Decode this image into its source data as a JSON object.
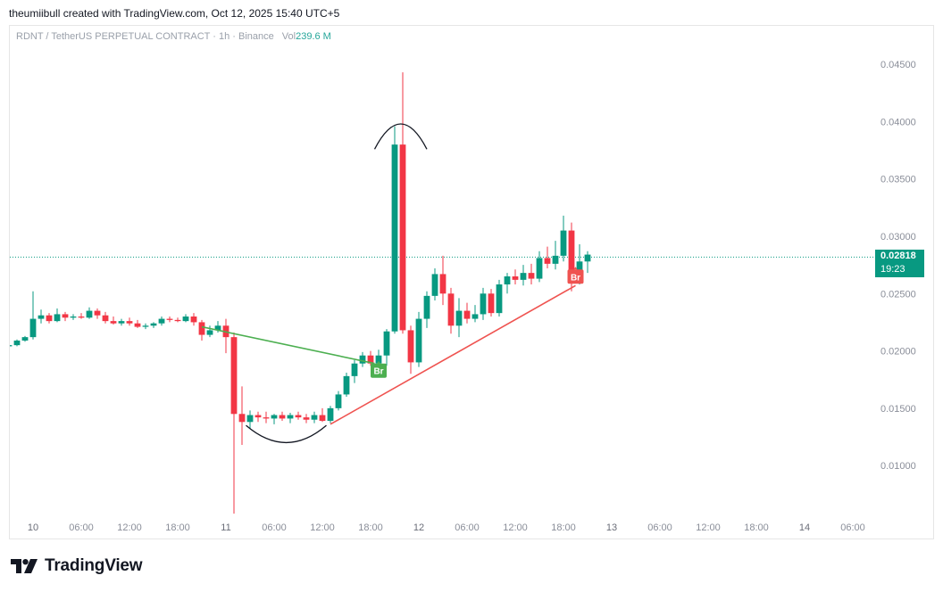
{
  "header": {
    "text": "theumiibull created with TradingView.com, Oct 12, 2025 15:40 UTC+5"
  },
  "legend": {
    "symbol": "RDNT / TetherUS PERPETUAL CONTRACT · 1h · Binance",
    "vol_label": "Vol",
    "vol_value": "239.6 M"
  },
  "price_tag": {
    "price": "0.02818",
    "countdown": "19:23"
  },
  "brand": {
    "name": "TradingView",
    "logo_icon": "tradingview-logo-icon"
  },
  "colors": {
    "up": "#089981",
    "down": "#f23645",
    "green_line": "#4caf50",
    "red_line": "#ef5350",
    "annotation": "#131722"
  },
  "chart_data": {
    "type": "candlestick",
    "interval": "1h",
    "current_price": 0.02818,
    "ylim": [
      0.0055,
      0.0475
    ],
    "y_ticks": [
      0.045,
      0.04,
      0.035,
      0.03,
      0.025,
      0.02,
      0.015,
      0.01
    ],
    "y_tick_labels": [
      "0.04500",
      "0.04000",
      "0.03500",
      "0.03000",
      "0.02500",
      "0.02000",
      "0.01500",
      "0.01000"
    ],
    "x_ticks": [
      {
        "label": "10",
        "x": 0,
        "day": true
      },
      {
        "label": "06:00",
        "x": 6
      },
      {
        "label": "12:00",
        "x": 12
      },
      {
        "label": "18:00",
        "x": 18
      },
      {
        "label": "11",
        "x": 24,
        "day": true
      },
      {
        "label": "06:00",
        "x": 30
      },
      {
        "label": "12:00",
        "x": 36
      },
      {
        "label": "18:00",
        "x": 42
      },
      {
        "label": "12",
        "x": 48,
        "day": true
      },
      {
        "label": "06:00",
        "x": 54
      },
      {
        "label": "12:00",
        "x": 60
      },
      {
        "label": "18:00",
        "x": 66
      },
      {
        "label": "13",
        "x": 72,
        "day": true
      },
      {
        "label": "06:00",
        "x": 78
      },
      {
        "label": "12:00",
        "x": 84
      },
      {
        "label": "18:00",
        "x": 90
      },
      {
        "label": "14",
        "x": 96,
        "day": true
      },
      {
        "label": "06:00",
        "x": 102
      }
    ],
    "candles": [
      {
        "x": -3,
        "o": 0.0204,
        "h": 0.0207,
        "l": 0.0202,
        "c": 0.0205
      },
      {
        "x": -2,
        "o": 0.0205,
        "h": 0.021,
        "l": 0.0204,
        "c": 0.0209
      },
      {
        "x": -1,
        "o": 0.0209,
        "h": 0.0213,
        "l": 0.0208,
        "c": 0.0212
      },
      {
        "x": 0,
        "o": 0.0212,
        "h": 0.0252,
        "l": 0.021,
        "c": 0.0228
      },
      {
        "x": 1,
        "o": 0.0228,
        "h": 0.0236,
        "l": 0.0224,
        "c": 0.0231
      },
      {
        "x": 2,
        "o": 0.0231,
        "h": 0.0233,
        "l": 0.0224,
        "c": 0.0226
      },
      {
        "x": 3,
        "o": 0.0226,
        "h": 0.0237,
        "l": 0.0225,
        "c": 0.0232
      },
      {
        "x": 4,
        "o": 0.0232,
        "h": 0.0234,
        "l": 0.0226,
        "c": 0.0229
      },
      {
        "x": 5,
        "o": 0.0229,
        "h": 0.0232,
        "l": 0.0227,
        "c": 0.023
      },
      {
        "x": 6,
        "o": 0.023,
        "h": 0.0233,
        "l": 0.0228,
        "c": 0.0229
      },
      {
        "x": 7,
        "o": 0.0229,
        "h": 0.0238,
        "l": 0.0228,
        "c": 0.0235
      },
      {
        "x": 8,
        "o": 0.0235,
        "h": 0.0237,
        "l": 0.0228,
        "c": 0.0231
      },
      {
        "x": 9,
        "o": 0.0231,
        "h": 0.0234,
        "l": 0.0224,
        "c": 0.0226
      },
      {
        "x": 10,
        "o": 0.0226,
        "h": 0.023,
        "l": 0.0223,
        "c": 0.0224
      },
      {
        "x": 11,
        "o": 0.0224,
        "h": 0.0228,
        "l": 0.0222,
        "c": 0.0226
      },
      {
        "x": 12,
        "o": 0.0226,
        "h": 0.0229,
        "l": 0.0222,
        "c": 0.0224
      },
      {
        "x": 13,
        "o": 0.0224,
        "h": 0.0227,
        "l": 0.022,
        "c": 0.0221
      },
      {
        "x": 14,
        "o": 0.0221,
        "h": 0.0224,
        "l": 0.0219,
        "c": 0.0222
      },
      {
        "x": 15,
        "o": 0.0222,
        "h": 0.0225,
        "l": 0.022,
        "c": 0.0224
      },
      {
        "x": 16,
        "o": 0.0224,
        "h": 0.023,
        "l": 0.0222,
        "c": 0.0228
      },
      {
        "x": 17,
        "o": 0.0228,
        "h": 0.023,
        "l": 0.0225,
        "c": 0.0227
      },
      {
        "x": 18,
        "o": 0.0227,
        "h": 0.0229,
        "l": 0.0225,
        "c": 0.0226
      },
      {
        "x": 19,
        "o": 0.0226,
        "h": 0.0232,
        "l": 0.0225,
        "c": 0.023
      },
      {
        "x": 20,
        "o": 0.023,
        "h": 0.0233,
        "l": 0.0222,
        "c": 0.0225
      },
      {
        "x": 21,
        "o": 0.0225,
        "h": 0.0227,
        "l": 0.0209,
        "c": 0.0214
      },
      {
        "x": 22,
        "o": 0.0214,
        "h": 0.0222,
        "l": 0.0212,
        "c": 0.0218
      },
      {
        "x": 23,
        "o": 0.0218,
        "h": 0.0226,
        "l": 0.0216,
        "c": 0.0222
      },
      {
        "x": 24,
        "o": 0.0222,
        "h": 0.0228,
        "l": 0.0198,
        "c": 0.0212
      },
      {
        "x": 25,
        "o": 0.0212,
        "h": 0.0216,
        "l": 0.0058,
        "c": 0.0145
      },
      {
        "x": 26,
        "o": 0.0145,
        "h": 0.0169,
        "l": 0.0118,
        "c": 0.0138
      },
      {
        "x": 27,
        "o": 0.0138,
        "h": 0.0148,
        "l": 0.0132,
        "c": 0.0144
      },
      {
        "x": 28,
        "o": 0.0144,
        "h": 0.0147,
        "l": 0.0138,
        "c": 0.0142
      },
      {
        "x": 29,
        "o": 0.0142,
        "h": 0.0147,
        "l": 0.0137,
        "c": 0.0141
      },
      {
        "x": 30,
        "o": 0.0141,
        "h": 0.0145,
        "l": 0.0136,
        "c": 0.0144
      },
      {
        "x": 31,
        "o": 0.0144,
        "h": 0.0147,
        "l": 0.0139,
        "c": 0.0141
      },
      {
        "x": 32,
        "o": 0.0141,
        "h": 0.0146,
        "l": 0.0137,
        "c": 0.0144
      },
      {
        "x": 33,
        "o": 0.0144,
        "h": 0.0147,
        "l": 0.014,
        "c": 0.0142
      },
      {
        "x": 34,
        "o": 0.0142,
        "h": 0.0145,
        "l": 0.0137,
        "c": 0.014
      },
      {
        "x": 35,
        "o": 0.014,
        "h": 0.0147,
        "l": 0.0137,
        "c": 0.0144
      },
      {
        "x": 36,
        "o": 0.0144,
        "h": 0.015,
        "l": 0.0138,
        "c": 0.0139
      },
      {
        "x": 37,
        "o": 0.0139,
        "h": 0.0152,
        "l": 0.0137,
        "c": 0.015
      },
      {
        "x": 38,
        "o": 0.015,
        "h": 0.0165,
        "l": 0.0148,
        "c": 0.0162
      },
      {
        "x": 39,
        "o": 0.0162,
        "h": 0.0181,
        "l": 0.016,
        "c": 0.0178
      },
      {
        "x": 40,
        "o": 0.0178,
        "h": 0.0192,
        "l": 0.0172,
        "c": 0.0189
      },
      {
        "x": 41,
        "o": 0.0189,
        "h": 0.0199,
        "l": 0.0186,
        "c": 0.0196
      },
      {
        "x": 42,
        "o": 0.0196,
        "h": 0.02,
        "l": 0.0187,
        "c": 0.0189
      },
      {
        "x": 43,
        "o": 0.0189,
        "h": 0.0201,
        "l": 0.0185,
        "c": 0.0196
      },
      {
        "x": 44,
        "o": 0.0196,
        "h": 0.0219,
        "l": 0.0187,
        "c": 0.0217
      },
      {
        "x": 45,
        "o": 0.0217,
        "h": 0.0396,
        "l": 0.0215,
        "c": 0.038
      },
      {
        "x": 46,
        "o": 0.038,
        "h": 0.0443,
        "l": 0.0215,
        "c": 0.0218
      },
      {
        "x": 47,
        "o": 0.0218,
        "h": 0.0222,
        "l": 0.018,
        "c": 0.019
      },
      {
        "x": 48,
        "o": 0.019,
        "h": 0.0234,
        "l": 0.0186,
        "c": 0.0228
      },
      {
        "x": 49,
        "o": 0.0228,
        "h": 0.0252,
        "l": 0.022,
        "c": 0.0248
      },
      {
        "x": 50,
        "o": 0.0248,
        "h": 0.0272,
        "l": 0.0244,
        "c": 0.0267
      },
      {
        "x": 51,
        "o": 0.0267,
        "h": 0.0283,
        "l": 0.024,
        "c": 0.025
      },
      {
        "x": 52,
        "o": 0.025,
        "h": 0.0255,
        "l": 0.0215,
        "c": 0.0222
      },
      {
        "x": 53,
        "o": 0.0222,
        "h": 0.0246,
        "l": 0.0212,
        "c": 0.0235
      },
      {
        "x": 54,
        "o": 0.0235,
        "h": 0.0242,
        "l": 0.0224,
        "c": 0.0228
      },
      {
        "x": 55,
        "o": 0.0228,
        "h": 0.024,
        "l": 0.0225,
        "c": 0.0232
      },
      {
        "x": 56,
        "o": 0.0232,
        "h": 0.0255,
        "l": 0.0227,
        "c": 0.025
      },
      {
        "x": 57,
        "o": 0.025,
        "h": 0.0254,
        "l": 0.023,
        "c": 0.0233
      },
      {
        "x": 58,
        "o": 0.0233,
        "h": 0.0262,
        "l": 0.023,
        "c": 0.0258
      },
      {
        "x": 59,
        "o": 0.0258,
        "h": 0.0268,
        "l": 0.025,
        "c": 0.0265
      },
      {
        "x": 60,
        "o": 0.0265,
        "h": 0.0271,
        "l": 0.0258,
        "c": 0.0262
      },
      {
        "x": 61,
        "o": 0.0262,
        "h": 0.0275,
        "l": 0.0257,
        "c": 0.0268
      },
      {
        "x": 62,
        "o": 0.0268,
        "h": 0.0276,
        "l": 0.0258,
        "c": 0.0263
      },
      {
        "x": 63,
        "o": 0.0263,
        "h": 0.0287,
        "l": 0.026,
        "c": 0.0281
      },
      {
        "x": 64,
        "o": 0.0281,
        "h": 0.0291,
        "l": 0.0272,
        "c": 0.0276
      },
      {
        "x": 65,
        "o": 0.0276,
        "h": 0.0296,
        "l": 0.0271,
        "c": 0.0283
      },
      {
        "x": 66,
        "o": 0.0283,
        "h": 0.0318,
        "l": 0.0278,
        "c": 0.0305
      },
      {
        "x": 67,
        "o": 0.0305,
        "h": 0.0312,
        "l": 0.0252,
        "c": 0.0262
      },
      {
        "x": 68,
        "o": 0.0262,
        "h": 0.0293,
        "l": 0.0258,
        "c": 0.0278
      },
      {
        "x": 69,
        "o": 0.0278,
        "h": 0.0287,
        "l": 0.0268,
        "c": 0.0284
      }
    ],
    "trendlines": [
      {
        "name": "green-line",
        "color": "green",
        "from": {
          "x": 21,
          "y": 0.0221
        },
        "to": {
          "x": 42.5,
          "y": 0.0189
        }
      },
      {
        "name": "red-line",
        "color": "red",
        "from": {
          "x": 37,
          "y": 0.0136
        },
        "to": {
          "x": 67.5,
          "y": 0.0257
        }
      }
    ],
    "labels": [
      {
        "text": "Br",
        "color": "green",
        "x": 43,
        "y": 0.0182
      },
      {
        "text": "Br",
        "color": "red",
        "x": 67.5,
        "y": 0.0264
      }
    ],
    "arcs": [
      {
        "name": "top-arc",
        "type": "cap",
        "x_from": 42.5,
        "x_to": 49,
        "y_base": 0.0376,
        "y_peak": 0.0398
      },
      {
        "name": "bottom-arc",
        "type": "cup",
        "x_from": 26.5,
        "x_to": 36.5,
        "y_base": 0.0135,
        "y_peak": 0.012
      }
    ]
  }
}
